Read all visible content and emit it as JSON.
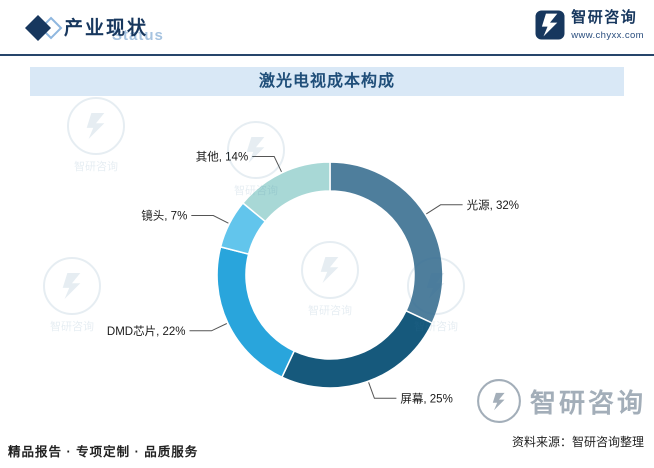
{
  "header": {
    "title": "产业现状",
    "status_watermark": "Status",
    "brand": "智研咨询",
    "brand_url": "www.chyxx.com"
  },
  "chart_data": {
    "type": "pie",
    "subtype": "donut",
    "title": "激光电视成本构成",
    "label_format": "{label}, {value}%",
    "start_angle_deg": -90,
    "direction": "clockwise",
    "inner_radius_ratio": 0.74,
    "legend_position": "none",
    "segments": [
      {
        "label": "光源",
        "value": 32,
        "color": "#4E7E9C"
      },
      {
        "label": "屏幕",
        "value": 25,
        "color": "#16597C"
      },
      {
        "label": "DMD芯片",
        "value": 22,
        "color": "#29A5DC"
      },
      {
        "label": "镜头",
        "value": 7,
        "color": "#62C5EC"
      },
      {
        "label": "其他",
        "value": 14,
        "color": "#A8D8D6"
      }
    ]
  },
  "watermark": {
    "brand": "智研咨询"
  },
  "footer": {
    "services": "精品报告 · 专项定制 · 品质服务",
    "source": "资料来源：智研咨询整理"
  },
  "colors": {
    "navy": "#17375E",
    "title_bar_bg": "#D9E8F6",
    "title_text": "#1F4E79",
    "leader_line": "#555555",
    "label_text": "#1a1a1a"
  }
}
